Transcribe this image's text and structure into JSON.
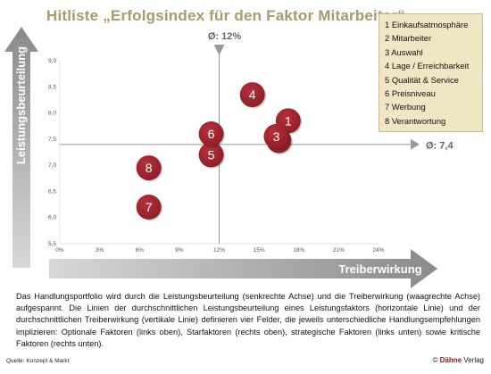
{
  "title": "Hitliste „Erfolgsindex für den Faktor Mitarbeiter“",
  "legend": {
    "items": [
      "1 Einkaufsatmosphäre",
      "2 Mitarbeiter",
      "3 Auswahl",
      "4 Lage / Erreichbarkeit",
      "5 Qualität & Service",
      "6 Preisniveau",
      "7 Werbung",
      "8 Verantwortung"
    ]
  },
  "chart_data": {
    "type": "scatter",
    "title": "Hitliste „Erfolgsindex für den Faktor Mitarbeiter“",
    "xlabel": "Treiberwirkung",
    "ylabel": "Leistungsbeurteilung",
    "xlim": [
      0,
      24
    ],
    "ylim": [
      5.5,
      9.0
    ],
    "x_ticks": [
      "0%",
      "3%",
      "6%",
      "9%",
      "12%",
      "15%",
      "18%",
      "21%",
      "24%"
    ],
    "y_ticks": [
      "5,5",
      "6,0",
      "6,5",
      "7,0",
      "7,5",
      "8,0",
      "8,5",
      "9,0"
    ],
    "x_mean": 12,
    "y_mean": 7.4,
    "x_mean_label": "Ø: 12%",
    "y_mean_label": "Ø: 7,4",
    "points": [
      {
        "label": "1",
        "x": 17.2,
        "y": 7.85
      },
      {
        "label": "2",
        "x": 16.5,
        "y": 7.47
      },
      {
        "label": "3",
        "x": 16.3,
        "y": 7.55
      },
      {
        "label": "4",
        "x": 14.5,
        "y": 8.35
      },
      {
        "label": "5",
        "x": 11.4,
        "y": 7.2
      },
      {
        "label": "6",
        "x": 11.4,
        "y": 7.6
      },
      {
        "label": "7",
        "x": 6.7,
        "y": 6.2
      },
      {
        "label": "8",
        "x": 6.7,
        "y": 6.95
      }
    ],
    "point_color": "#8c1b24",
    "grid": false
  },
  "description": "Das Handlungsportfolio wird durch die Leistungsbeurteilung (senkrechte Achse) und die Treiberwirkung (waagrechte Achse) aufgespannt. Die Linien der durchschnittlichen Leistungsbeurteilung eines Leistungsfaktors (horizontale Linie) und der durchschnittlichen Treiberwirkung (vertikale Linie) definieren vier Felder, die jeweils unterschiedliche Handlungsempfehlungen implizieren: Optionale Faktoren (links oben), Starfaktoren (rechts oben), strategische Faktoren (links unten) sowie kritische Faktoren (rechts unten).",
  "source": "Quelle: Konzept & Markt",
  "copyright": {
    "symbol": "© ",
    "brand": "Dähne",
    "suffix": " Verlag"
  }
}
